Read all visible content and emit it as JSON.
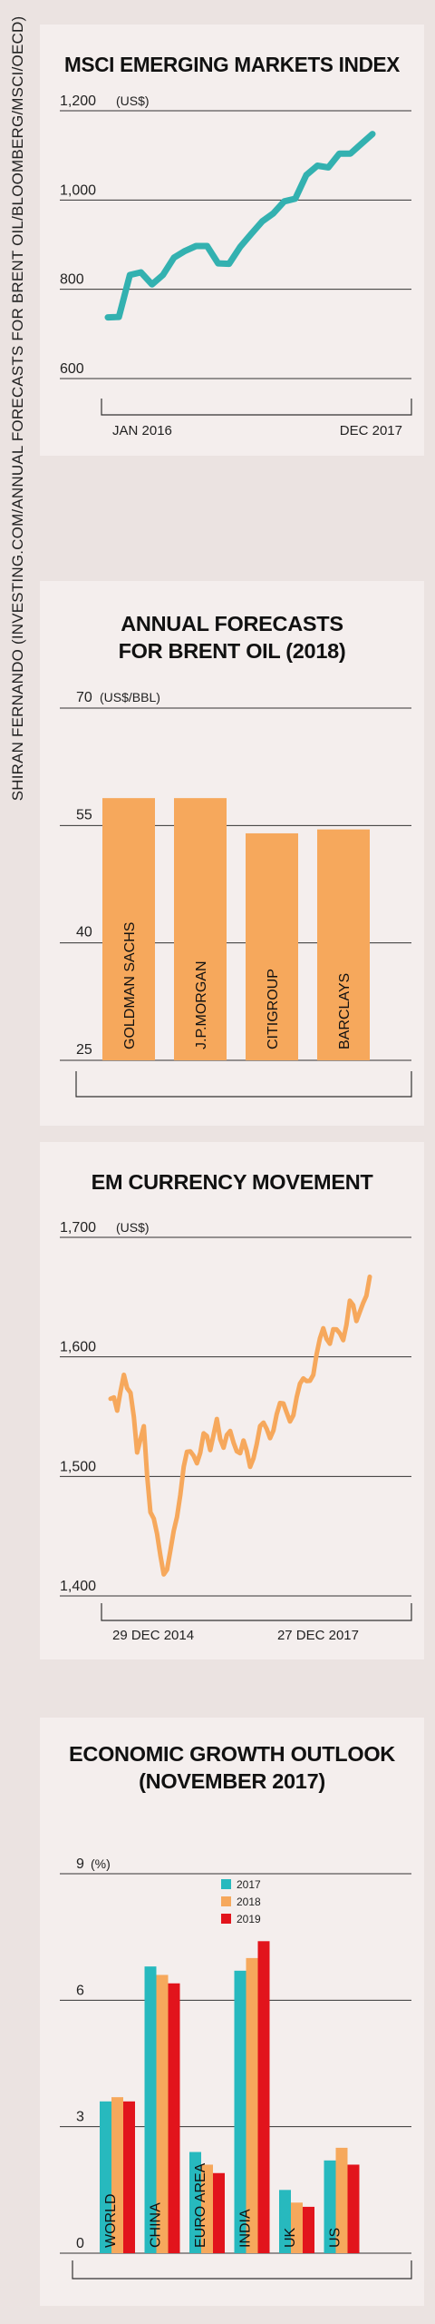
{
  "credit": "SHIRAN FERNANDO (INVESTING.COM/ANNUAL FORECASTS FOR BRENT OIL/BLOOMBERG/MSCI/OECD)",
  "colors": {
    "background": "#ebe3e1",
    "panel": "#f4eeed",
    "msci_line": "#33b1b0",
    "bar_orange": "#f6a85c",
    "currency_line": "#f6a85c",
    "teal_2017": "#27b9be",
    "orange_2018": "#f6a85c",
    "red_2019": "#e2141c"
  },
  "chart_data": [
    {
      "type": "line",
      "title": "MSCI EMERGING MARKETS INDEX",
      "unit": "(US$)",
      "ylim": [
        600,
        1200
      ],
      "yticks": [
        600,
        800,
        1000,
        1200
      ],
      "ytick_labels": [
        "600",
        "800",
        "1,000",
        "1,200"
      ],
      "xticks": [
        "JAN 2016",
        "DEC 2017"
      ],
      "xtick_index": [
        1,
        23
      ],
      "color": "msci_line",
      "series": [
        {
          "x": [
            "Jan 2016",
            "Feb 2016",
            "Mar 2016",
            "Apr 2016",
            "May 2016",
            "Jun 2016",
            "Jul 2016",
            "Aug 2016",
            "Sep 2016",
            "Oct 2016",
            "Nov 2016",
            "Dec 2016",
            "Jan 2017",
            "Feb 2017",
            "Mar 2017",
            "Apr 2017",
            "May 2017",
            "Jun 2017",
            "Jul 2017",
            "Aug 2017",
            "Sep 2017",
            "Oct 2017",
            "Nov 2017",
            "Dec 2017",
            "Jan 2018"
          ],
          "values": [
            737,
            738,
            832,
            838,
            811,
            832,
            871,
            886,
            897,
            897,
            858,
            857,
            895,
            924,
            952,
            970,
            997,
            1003,
            1056,
            1077,
            1073,
            1104,
            1104,
            1126,
            1148
          ]
        }
      ]
    },
    {
      "type": "bar",
      "title": "ANNUAL FORECASTS FOR BRENT OIL (2018)",
      "unit": "(US$/BBL)",
      "ylim": [
        25,
        70
      ],
      "yticks": [
        25,
        40,
        55,
        70
      ],
      "categories": [
        "GOLDMAN SACHS",
        "J.P.MORGAN",
        "CITIGROUP",
        "BARCLAYS"
      ],
      "values": [
        58.5,
        58.5,
        54,
        54.5
      ],
      "color": "bar_orange"
    },
    {
      "type": "line",
      "title": "EM CURRENCY MOVEMENT",
      "unit": "(US$)",
      "ylim": [
        1400,
        1700
      ],
      "yticks": [
        1400,
        1500,
        1600,
        1700
      ],
      "ytick_labels": [
        "1,400",
        "1,500",
        "1,600",
        "1,700"
      ],
      "xticks": [
        "29 DEC 2014",
        "27 DEC 2017"
      ],
      "xtick_index": [
        1,
        37
      ],
      "color": "currency_line",
      "series": [
        {
          "values": [
            1565,
            1555,
            1585,
            1570,
            1520,
            1542,
            1470,
            1452,
            1418,
            1438,
            1466,
            1508,
            1521,
            1511,
            1536,
            1522,
            1548,
            1524,
            1538,
            1521,
            1530,
            1508,
            1527,
            1545,
            1532,
            1552,
            1561,
            1546,
            1566,
            1582,
            1580,
            1602,
            1624,
            1611,
            1623,
            1614,
            1647,
            1630,
            1645,
            1667
          ]
        }
      ]
    },
    {
      "type": "bar",
      "title": "ECONOMIC GROWTH OUTLOOK (NOVEMBER 2017)",
      "unit": "(%)",
      "ylim": [
        0,
        9
      ],
      "yticks": [
        0,
        3,
        6,
        9
      ],
      "categories": [
        "WORLD",
        "CHINA",
        "EURO AREA",
        "INDIA",
        "UK",
        "US"
      ],
      "series": [
        {
          "name": "2017",
          "color": "teal_2017",
          "values": [
            3.6,
            6.8,
            2.4,
            6.7,
            1.5,
            2.2
          ]
        },
        {
          "name": "2018",
          "color": "orange_2018",
          "values": [
            3.7,
            6.6,
            2.1,
            7.0,
            1.2,
            2.5
          ]
        },
        {
          "name": "2019",
          "color": "red_2019",
          "values": [
            3.6,
            6.4,
            1.9,
            7.4,
            1.1,
            2.1
          ]
        }
      ]
    }
  ]
}
